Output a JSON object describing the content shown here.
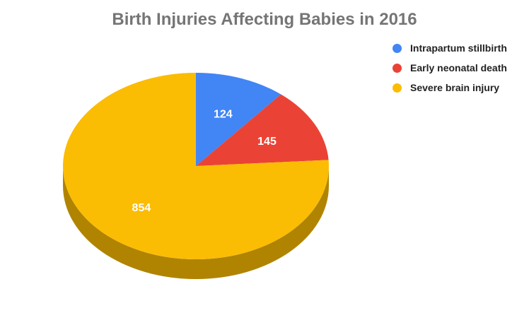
{
  "chart_data": {
    "type": "pie",
    "title": "Birth Injuries Affecting Babies in 2016",
    "three_d": true,
    "legend_position": "right",
    "slices": [
      {
        "label": "Intrapartum stillbirth",
        "value": 124,
        "color": "#4285F4",
        "side_color": "#2B5CB8"
      },
      {
        "label": "Early neonatal death",
        "value": 145,
        "color": "#EA4335",
        "side_color": "#A52E22"
      },
      {
        "label": "Severe brain injury",
        "value": 854,
        "color": "#FBBC04",
        "side_color": "#B08400"
      }
    ]
  }
}
